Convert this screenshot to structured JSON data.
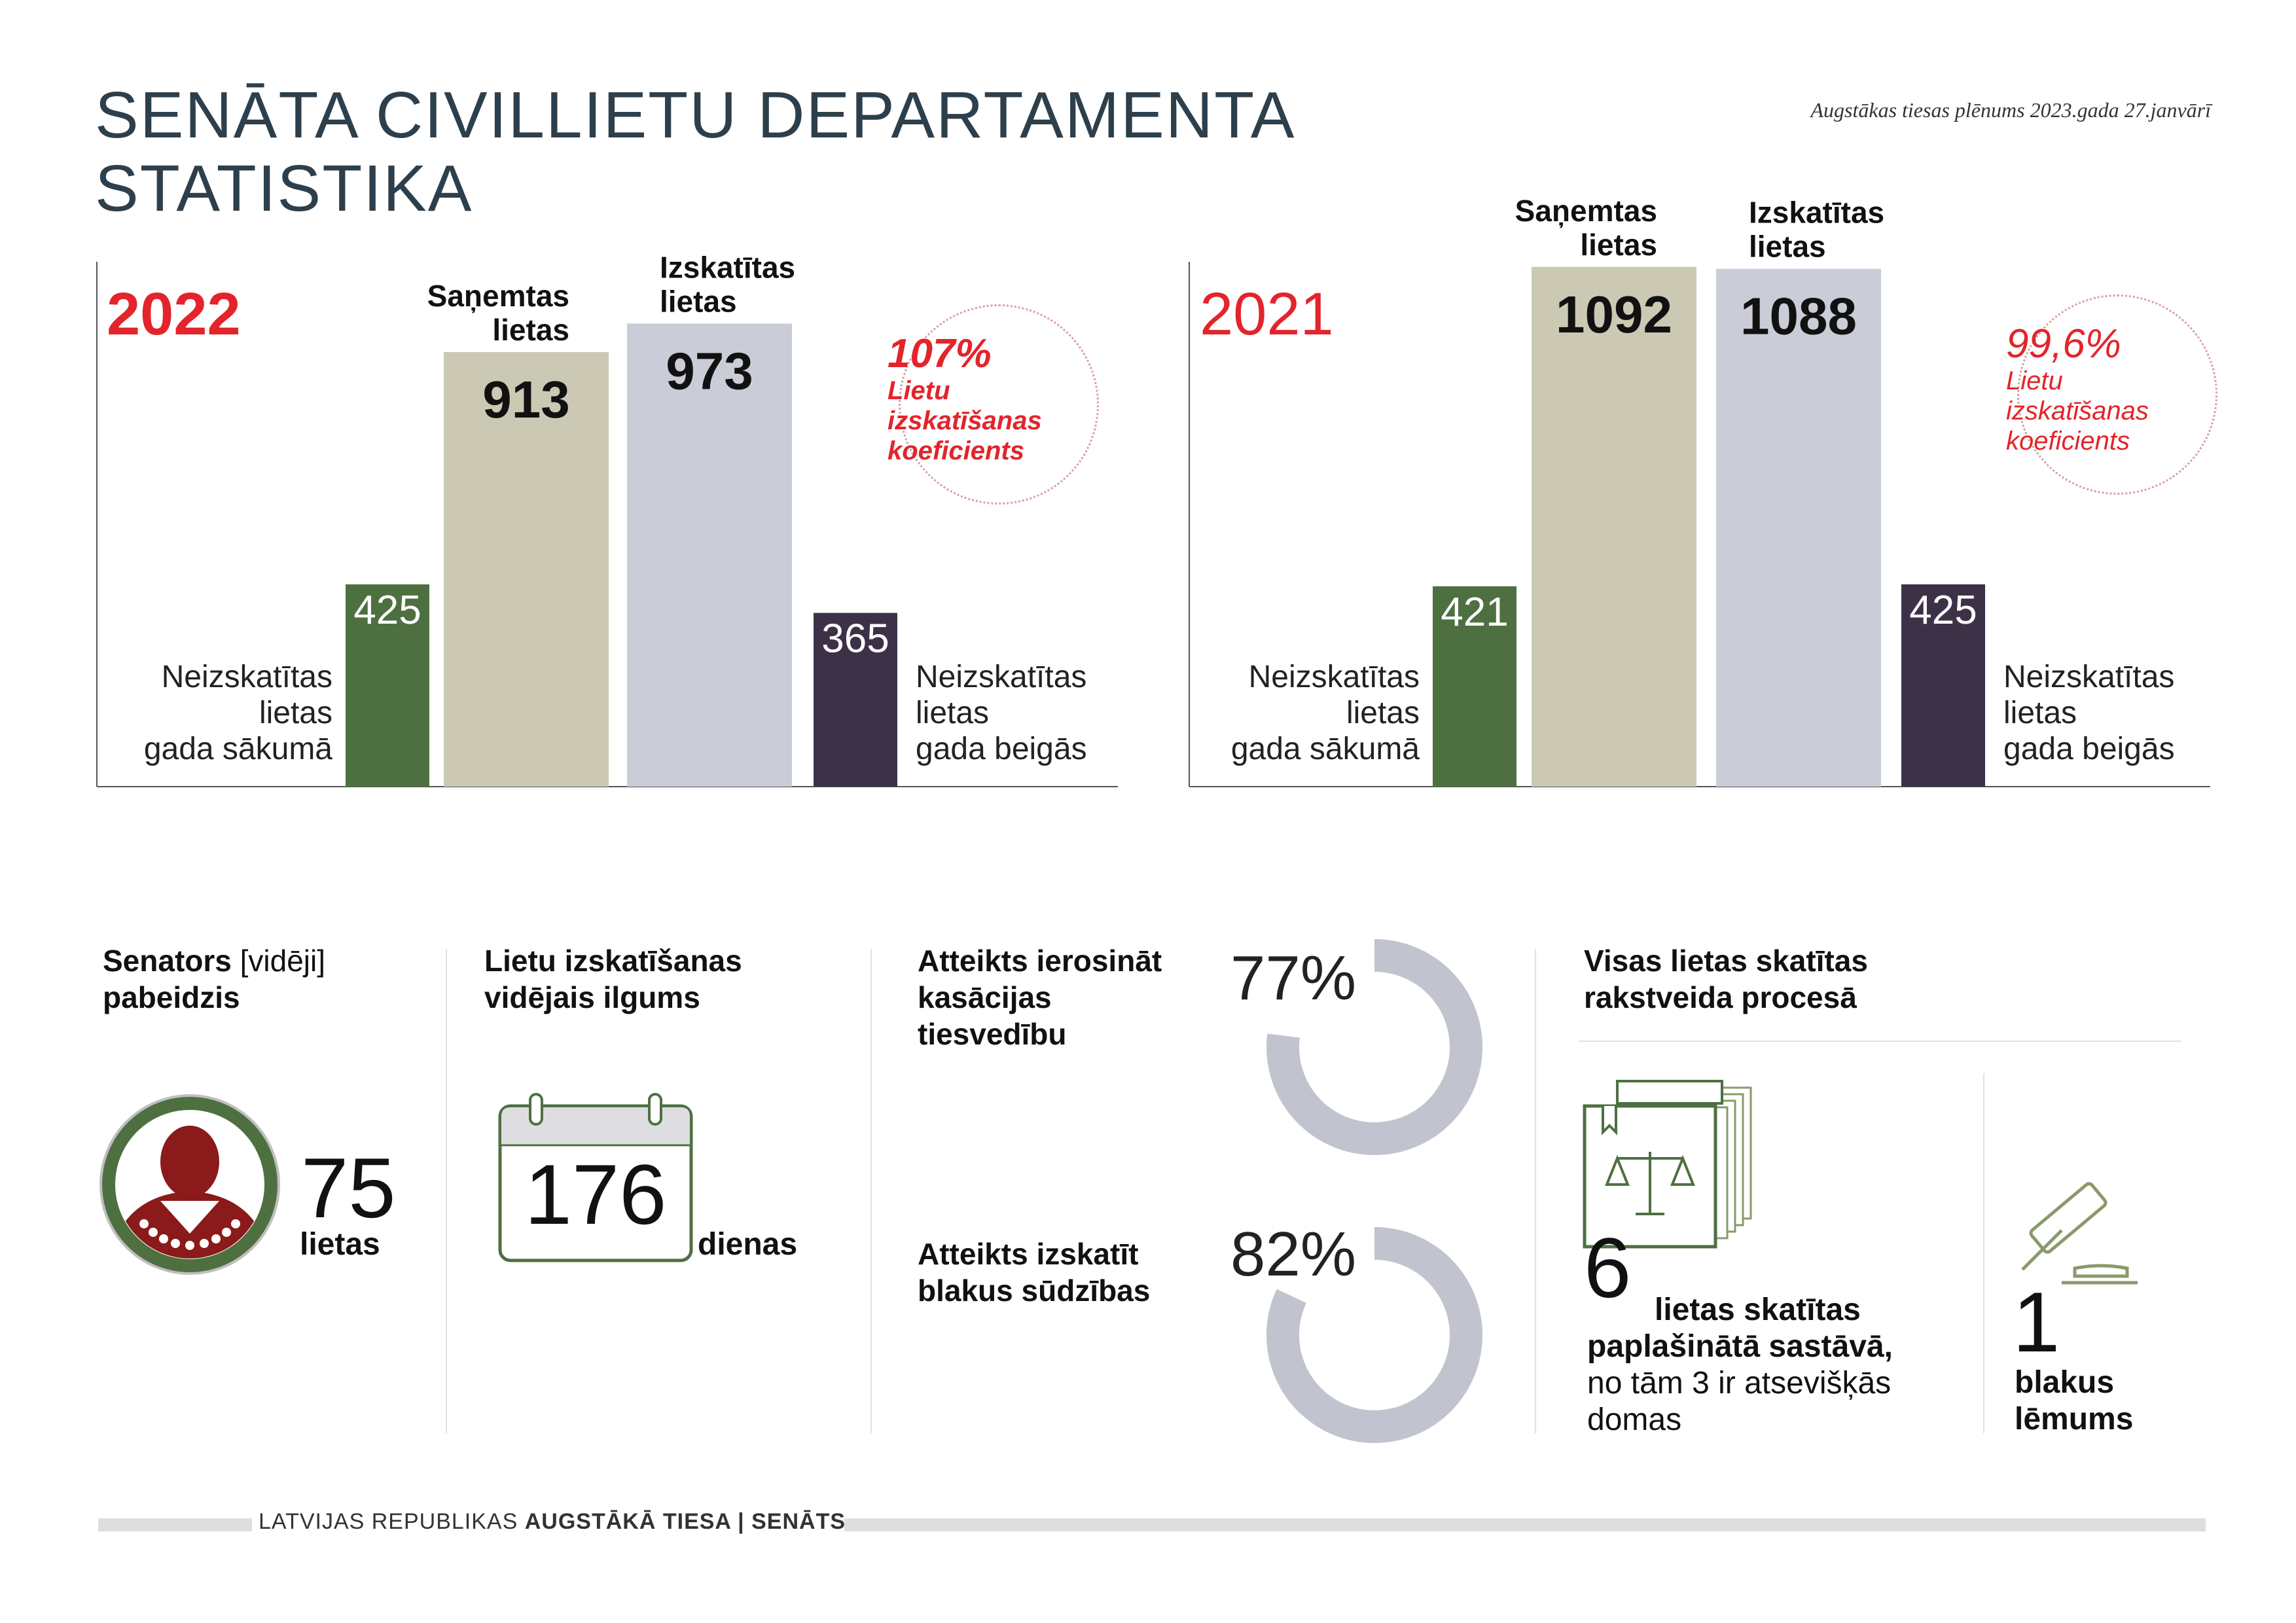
{
  "title": {
    "line1": "SENĀTA CIVILLIETU DEPARTAMENTA",
    "line2": "STATISTIKA"
  },
  "subtitle": "Augstākas tiesas plēnums 2023.gada 27.janvārī",
  "colors": {
    "green": "#4e7041",
    "khaki": "#cbc9b3",
    "grey": "#cacdd7",
    "purple": "#3d3147",
    "red": "#e3242b",
    "donut": "#c1c4ce"
  },
  "chart_data": [
    {
      "type": "bar",
      "title": "2022",
      "categories": [
        "Neizskatītas lietas gada sākumā",
        "Saņemtas lietas",
        "Izskatītas lietas",
        "Neizskatītas lietas gada beigās"
      ],
      "values": [
        425,
        913,
        973,
        365
      ],
      "ylim": [
        0,
        1100
      ],
      "coefficient": {
        "value": "107%",
        "label": [
          "Lietu",
          "izskatīšanas",
          "koeficients"
        ]
      }
    },
    {
      "type": "bar",
      "title": "2021",
      "categories": [
        "Neizskatītas lietas gada sākumā",
        "Saņemtas lietas",
        "Izskatītas lietas",
        "Neizskatītas lietas gada beigās"
      ],
      "values": [
        421,
        1092,
        1088,
        425
      ],
      "ylim": [
        0,
        1100
      ],
      "coefficient": {
        "value": "99,6%",
        "label": [
          "Lietu",
          "izskatīšanas",
          "koeficients"
        ]
      }
    }
  ],
  "bar_labels": {
    "received": [
      "Saņemtas",
      "lietas"
    ],
    "reviewed": [
      "Izskatītas",
      "lietas"
    ],
    "start": [
      "Neizskatītas",
      "lietas",
      "gada sākumā"
    ],
    "end": [
      "Neizskatītas",
      "lietas",
      "gada beigās"
    ]
  },
  "senator": {
    "title_bold": "Senators",
    "title_normal": "[vidēji]",
    "title_line2": "pabeidzis",
    "value": "75",
    "unit": "lietas"
  },
  "duration": {
    "title": [
      "Lietu izskatīšanas",
      "vidējais ilgums"
    ],
    "value": "176",
    "unit": "dienas"
  },
  "refusal": [
    {
      "title": [
        "Atteikts ierosināt",
        "kasācijas",
        "tiesvedību"
      ],
      "percent": "77%",
      "fraction": 0.77
    },
    {
      "title": [
        "Atteikts izskatīt",
        "blakus sūdzības"
      ],
      "percent": "82%",
      "fraction": 0.82
    }
  ],
  "written": {
    "title": [
      "Visas lietas skatītas",
      "rakstveida procesā"
    ],
    "expanded_value": "6",
    "expanded_text1": "lietas skatītas",
    "expanded_text2": "paplašinātā sastāvā,",
    "expanded_text3": "no tām 3 ir atsevišķās",
    "expanded_text4": "domas",
    "side_value": "1",
    "side_text": [
      "blakus",
      "lēmums"
    ]
  },
  "footer": {
    "normal": "LATVIJAS REPUBLIKAS",
    "bold": "AUGSTĀKĀ TIESA | SENĀTS"
  }
}
